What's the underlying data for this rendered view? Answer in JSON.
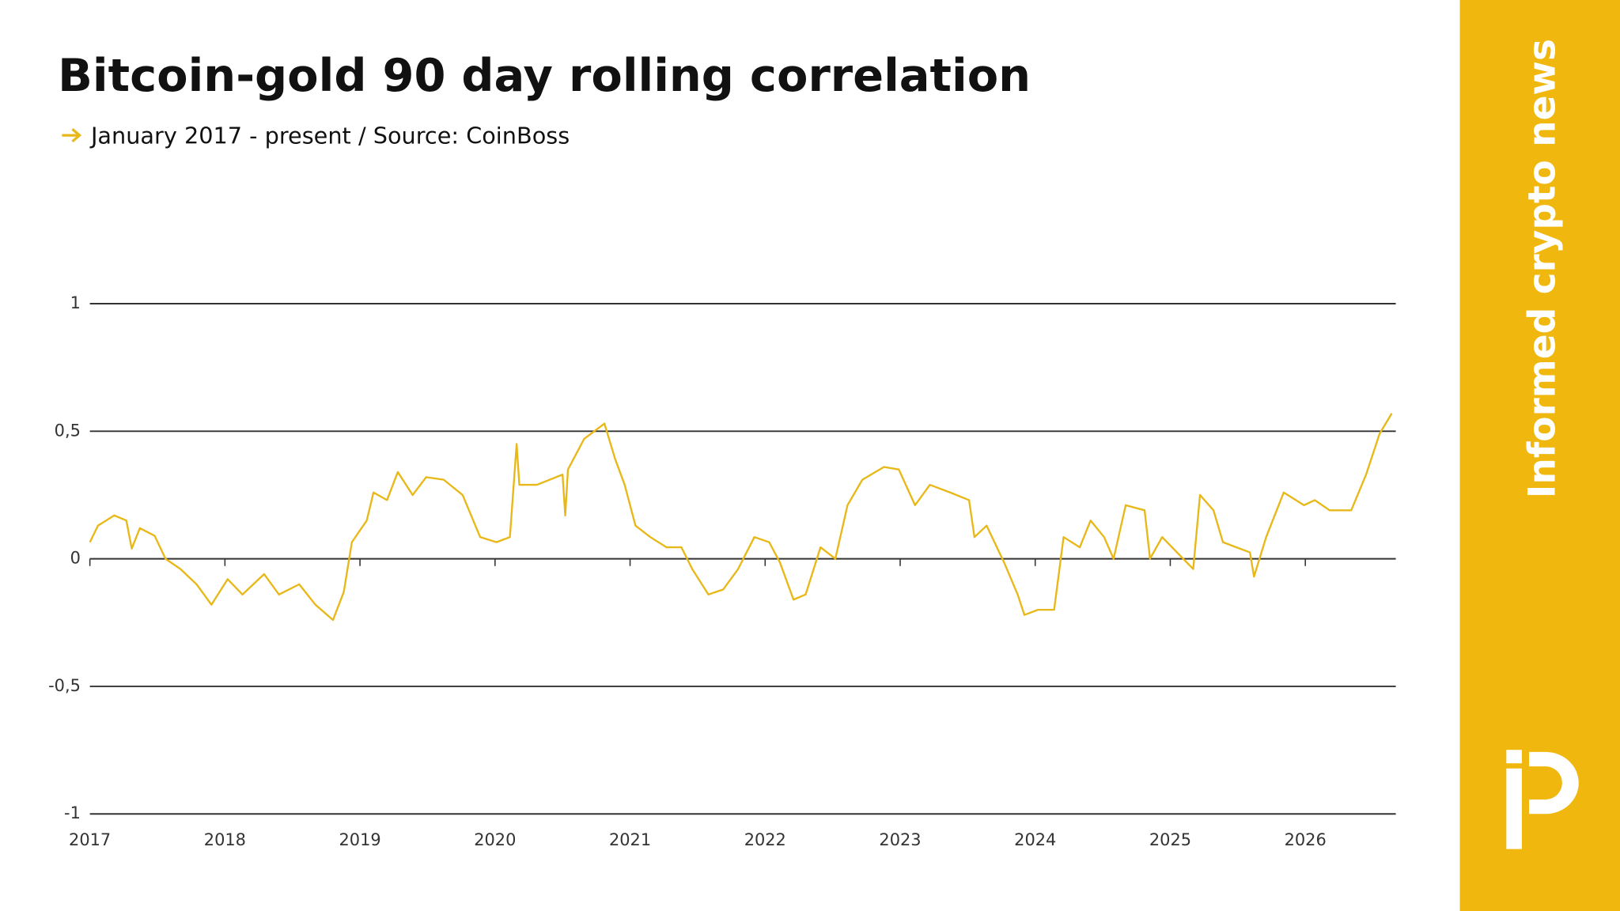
{
  "chart_data": {
    "type": "line",
    "title": "Bitcoin-gold 90 day rolling correlation",
    "subtitle": "January 2017 - present / Source: CoinBoss",
    "color": "#e8b818",
    "x": [
      2017.0,
      2017.06,
      2017.18,
      2017.27,
      2017.31,
      2017.37,
      2017.48,
      2017.56,
      2017.67,
      2017.79,
      2017.9,
      2018.02,
      2018.13,
      2018.29,
      2018.4,
      2018.55,
      2018.67,
      2018.8,
      2018.88,
      2018.94,
      2019.05,
      2019.1,
      2019.2,
      2019.28,
      2019.39,
      2019.49,
      2019.62,
      2019.76,
      2019.89,
      2020.01,
      2020.11,
      2020.16,
      2020.18,
      2020.31,
      2020.5,
      2020.52,
      2020.54,
      2020.66,
      2020.81,
      2020.89,
      2020.96,
      2021.04,
      2021.15,
      2021.27,
      2021.38,
      2021.46,
      2021.58,
      2021.69,
      2021.8,
      2021.92,
      2022.03,
      2022.11,
      2022.21,
      2022.3,
      2022.41,
      2022.52,
      2022.61,
      2022.72,
      2022.88,
      2022.99,
      2023.11,
      2023.22,
      2023.37,
      2023.51,
      2023.55,
      2023.64,
      2023.77,
      2023.87,
      2023.92,
      2024.02,
      2024.14,
      2024.21,
      2024.33,
      2024.41,
      2024.51,
      2024.58,
      2024.67,
      2024.81,
      2024.85,
      2024.94,
      2025.05,
      2025.17,
      2025.22,
      2025.32,
      2025.39,
      2025.49,
      2025.59,
      2025.62,
      2025.71,
      2025.84,
      2025.99,
      2026.07,
      2026.18,
      2026.34,
      2026.45,
      2026.55,
      2026.64
    ],
    "values": [
      0.065,
      0.13,
      0.17,
      0.15,
      0.04,
      0.12,
      0.09,
      0.0,
      -0.04,
      -0.1,
      -0.18,
      -0.08,
      -0.14,
      -0.06,
      -0.14,
      -0.1,
      -0.18,
      -0.24,
      -0.13,
      0.065,
      0.15,
      0.26,
      0.23,
      0.34,
      0.25,
      0.32,
      0.31,
      0.25,
      0.085,
      0.065,
      0.085,
      0.45,
      0.29,
      0.29,
      0.33,
      0.17,
      0.35,
      0.47,
      0.53,
      0.39,
      0.29,
      0.13,
      0.085,
      0.045,
      0.045,
      -0.04,
      -0.14,
      -0.12,
      -0.04,
      0.085,
      0.065,
      -0.015,
      -0.16,
      -0.14,
      0.045,
      0.0,
      0.21,
      0.31,
      0.36,
      0.35,
      0.21,
      0.29,
      0.26,
      0.23,
      0.085,
      0.13,
      -0.015,
      -0.14,
      -0.22,
      -0.2,
      -0.2,
      0.085,
      0.045,
      0.15,
      0.085,
      0.0,
      0.21,
      0.19,
      0.0,
      0.085,
      0.025,
      -0.04,
      0.25,
      0.19,
      0.065,
      0.045,
      0.025,
      -0.07,
      0.085,
      0.26,
      0.21,
      0.23,
      0.19,
      0.19,
      0.33,
      0.49,
      0.57
    ],
    "xlim": [
      2017,
      2026.67
    ],
    "xticks": [
      2017,
      2018,
      2019,
      2020,
      2021,
      2022,
      2023,
      2024,
      2025,
      2026
    ],
    "ylim": [
      -1,
      1
    ],
    "yticks": [
      1,
      {
        "value": 0.5,
        "label": "0,5"
      },
      0,
      {
        "value": -0.5,
        "label": "-0,5"
      },
      -1
    ],
    "grid": true
  },
  "brand": "Informed crypto news"
}
